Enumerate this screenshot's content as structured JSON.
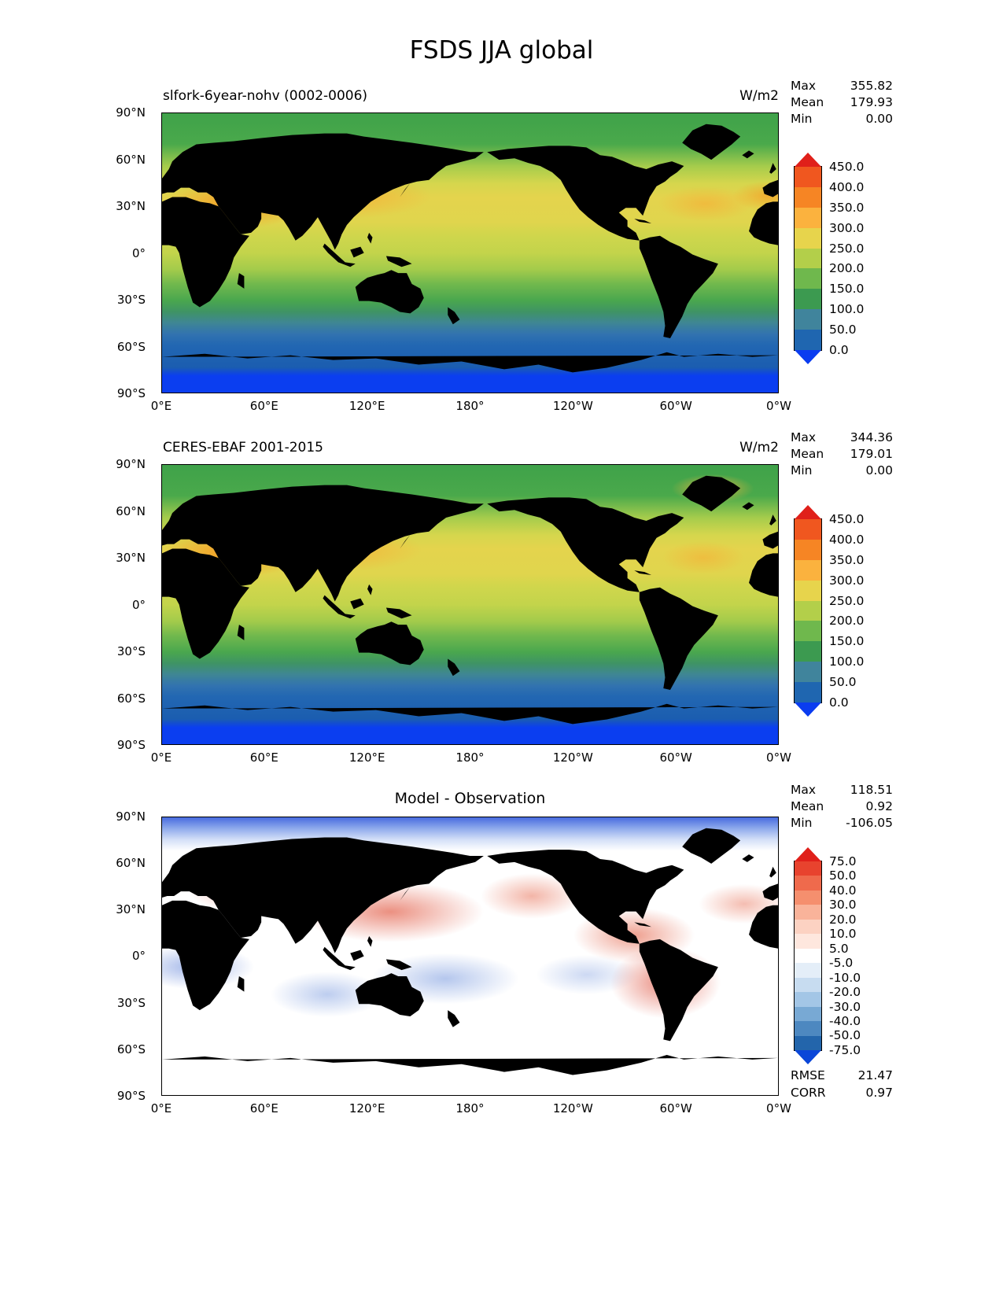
{
  "title": "FSDS JJA global",
  "panels": [
    {
      "name": "model",
      "title": "slfork-6year-nohv (0002-0006)",
      "units": "W/m2",
      "stats": [
        {
          "label": "Max",
          "value": "355.82"
        },
        {
          "label": "Mean",
          "value": "179.93"
        },
        {
          "label": "Min",
          "value": "0.00"
        }
      ],
      "yticks": [
        "90°N",
        "60°N",
        "30°N",
        "0°",
        "30°S",
        "60°S",
        "90°S"
      ],
      "xticks": [
        "0°E",
        "60°E",
        "120°E",
        "180°",
        "120°W",
        "60°W",
        "0°W"
      ],
      "colorbar": {
        "labels": [
          "450.0",
          "400.0",
          "350.0",
          "300.0",
          "250.0",
          "200.0",
          "150.0",
          "100.0",
          "50.0",
          "0.0"
        ],
        "colors": [
          "#f0571f",
          "#f68524",
          "#fbb23e",
          "#e7d44c",
          "#b3cf4a",
          "#6fb84d",
          "#3c9a50",
          "#40849c",
          "#1f66b0"
        ],
        "arrow_top": "#e0201a",
        "arrow_bottom": "#0a3cf0"
      }
    },
    {
      "name": "observation",
      "title": "CERES-EBAF 2001-2015",
      "units": "W/m2",
      "stats": [
        {
          "label": "Max",
          "value": "344.36"
        },
        {
          "label": "Mean",
          "value": "179.01"
        },
        {
          "label": "Min",
          "value": "0.00"
        }
      ],
      "yticks": [
        "90°N",
        "60°N",
        "30°N",
        "0°",
        "30°S",
        "60°S",
        "90°S"
      ],
      "xticks": [
        "0°E",
        "60°E",
        "120°E",
        "180°",
        "120°W",
        "60°W",
        "0°W"
      ],
      "colorbar": {
        "labels": [
          "450.0",
          "400.0",
          "350.0",
          "300.0",
          "250.0",
          "200.0",
          "150.0",
          "100.0",
          "50.0",
          "0.0"
        ],
        "colors": [
          "#f0571f",
          "#f68524",
          "#fbb23e",
          "#e7d44c",
          "#b3cf4a",
          "#6fb84d",
          "#3c9a50",
          "#40849c",
          "#1f66b0"
        ],
        "arrow_top": "#e0201a",
        "arrow_bottom": "#0a3cf0"
      }
    },
    {
      "name": "difference",
      "title": "Model - Observation",
      "stats": [
        {
          "label": "Max",
          "value": "118.51"
        },
        {
          "label": "Mean",
          "value": "0.92"
        },
        {
          "label": "Min",
          "value": "-106.05"
        }
      ],
      "extra_stats": [
        {
          "label": "RMSE",
          "value": "21.47"
        },
        {
          "label": "CORR",
          "value": "0.97"
        }
      ],
      "yticks": [
        "90°N",
        "60°N",
        "30°N",
        "0°",
        "30°S",
        "60°S",
        "90°S"
      ],
      "xticks": [
        "0°E",
        "60°E",
        "120°E",
        "180°",
        "120°W",
        "60°W",
        "0°W"
      ],
      "colorbar": {
        "labels": [
          "75.0",
          "50.0",
          "40.0",
          "30.0",
          "20.0",
          "10.0",
          "5.0",
          "-5.0",
          "-10.0",
          "-20.0",
          "-30.0",
          "-40.0",
          "-50.0",
          "-75.0"
        ],
        "colors": [
          "#e8432e",
          "#ef6a4c",
          "#f58f6e",
          "#f9b39a",
          "#fcd2c2",
          "#fee7de",
          "#ffffff",
          "#e4eef8",
          "#c7dcf0",
          "#a3c6e6",
          "#78a9d4",
          "#4d88c0",
          "#2365ab"
        ],
        "arrow_top": "#e0201a",
        "arrow_bottom": "#0a46d8"
      }
    }
  ],
  "chart_data": [
    {
      "type": "heatmap",
      "title": "slfork-6year-nohv (0002-0006)",
      "variable": "FSDS",
      "season": "JJA",
      "region": "global",
      "units": "W/m2",
      "projection": "global lat-lon, 0°E at left, 180° at center",
      "x_ticks": [
        "0°E",
        "60°E",
        "120°E",
        "180°",
        "120°W",
        "60°W",
        "0°W"
      ],
      "y_ticks": [
        "90°N",
        "60°N",
        "30°N",
        "0°",
        "30°S",
        "60°S",
        "90°S"
      ],
      "contour_levels": [
        0,
        50,
        100,
        150,
        200,
        250,
        300,
        350,
        400,
        450
      ],
      "colorbar_extend": "both",
      "stats": {
        "max": 355.82,
        "mean": 179.93,
        "min": 0.0
      },
      "pattern": "high values (300-450) in northern subtropics (Sahara/Arabia, N Pacific, N Atlantic); mid greens in tropics and high northern latitudes; low blue values (<100) south of 45S with near-0 over Antarctic polar night"
    },
    {
      "type": "heatmap",
      "title": "CERES-EBAF 2001-2015",
      "variable": "FSDS",
      "season": "JJA",
      "region": "global",
      "units": "W/m2",
      "projection": "global lat-lon, 0°E at left, 180° at center",
      "x_ticks": [
        "0°E",
        "60°E",
        "120°E",
        "180°",
        "120°W",
        "60°W",
        "0°W"
      ],
      "y_ticks": [
        "90°N",
        "60°N",
        "30°N",
        "0°",
        "30°S",
        "60°S",
        "90°S"
      ],
      "contour_levels": [
        0,
        50,
        100,
        150,
        200,
        250,
        300,
        350,
        400,
        450
      ],
      "colorbar_extend": "both",
      "stats": {
        "max": 344.36,
        "mean": 179.01,
        "min": 0.0
      },
      "pattern": "same banded structure as model; orange maxima over Sahara/Arabia and Greenland; blue minima poleward of 50S"
    },
    {
      "type": "heatmap",
      "title": "Model - Observation",
      "variable": "FSDS difference",
      "season": "JJA",
      "region": "global",
      "units": "W/m2",
      "projection": "global lat-lon, 0°E at left, 180° at center",
      "x_ticks": [
        "0°E",
        "60°E",
        "120°E",
        "180°",
        "120°W",
        "60°W",
        "0°W"
      ],
      "y_ticks": [
        "90°N",
        "60°N",
        "30°N",
        "0°",
        "30°S",
        "60°S",
        "90°S"
      ],
      "contour_levels": [
        -75,
        -50,
        -40,
        -30,
        -20,
        -10,
        -5,
        5,
        10,
        20,
        30,
        40,
        50,
        75
      ],
      "colorbar_extend": "both",
      "stats": {
        "max": 118.51,
        "mean": 0.92,
        "min": -106.05,
        "rmse": 21.47,
        "corr": 0.97
      },
      "pattern": "blue (negative) band across Arctic; red (positive) biases over Eurasia, East Asia, Caribbean and South America; scattered blue biases in tropical oceans; near-white south of 45S"
    }
  ]
}
